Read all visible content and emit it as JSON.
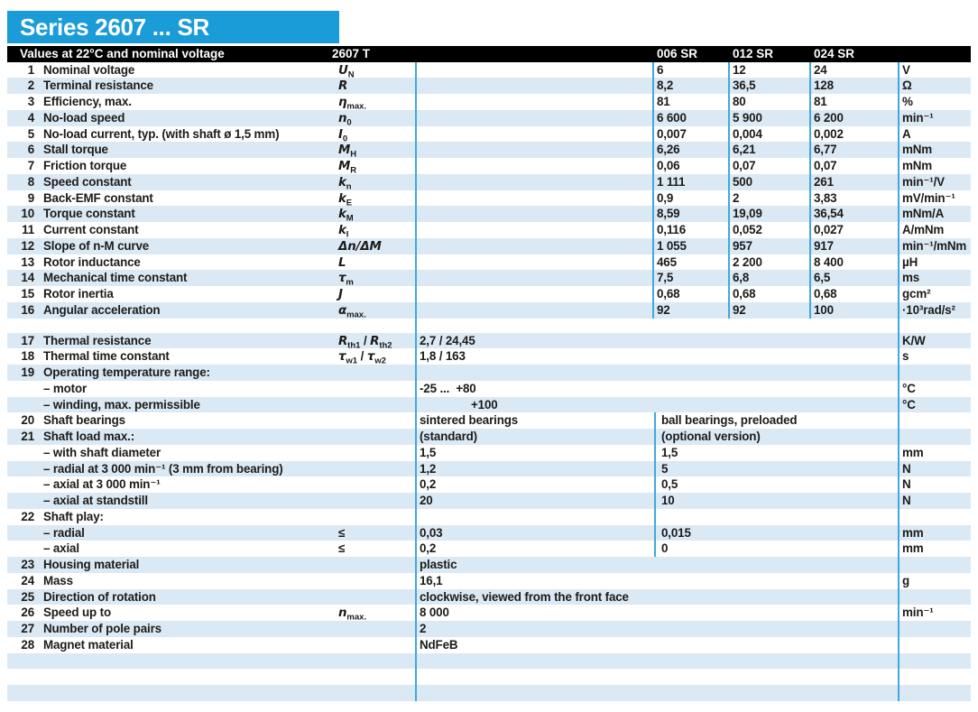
{
  "title": "Series 2607 ... SR",
  "header": {
    "left": "Values at 22°C and nominal voltage",
    "series": "2607 T",
    "columns": [
      "006 SR",
      "012 SR",
      "024 SR"
    ]
  },
  "colors": {
    "accent_blue": "#1a9cd8",
    "row_shade": "#dbe9f5",
    "divider_blue": "#41a8dc",
    "header_bar": "#000000",
    "text": "#1b1b19"
  },
  "rows": [
    {
      "t": "three",
      "n": "1",
      "label": "Nominal voltage",
      "sym": "<i>U</i><sub>N</sub>",
      "v": [
        "6",
        "12",
        "24"
      ],
      "unit": "V",
      "shaded": false
    },
    {
      "t": "three",
      "n": "2",
      "label": "Terminal resistance",
      "sym": "<i>R</i>",
      "v": [
        "8,2",
        "36,5",
        "128"
      ],
      "unit": "Ω",
      "shaded": true
    },
    {
      "t": "three",
      "n": "3",
      "label": "Efficiency, max.",
      "sym": "<i>η</i><sub>max.</sub>",
      "v": [
        "81",
        "80",
        "81"
      ],
      "unit": "%",
      "shaded": false
    },
    {
      "t": "three",
      "n": "4",
      "label": "No-load speed",
      "sym": "<i>n</i><sub>0</sub>",
      "v": [
        "6 600",
        "5 900",
        "6 200"
      ],
      "unit": "min⁻¹",
      "shaded": true
    },
    {
      "t": "three",
      "n": "5",
      "label": "No-load current, typ. (with shaft ø 1,5 mm)",
      "sym": "<i>I</i><sub>0</sub>",
      "v": [
        "0,007",
        "0,004",
        "0,002"
      ],
      "unit": "A",
      "shaded": false
    },
    {
      "t": "three",
      "n": "6",
      "label": "Stall torque",
      "sym": "<i>M</i><sub>H</sub>",
      "v": [
        "6,26",
        "6,21",
        "6,77"
      ],
      "unit": "mNm",
      "shaded": true
    },
    {
      "t": "three",
      "n": "7",
      "label": "Friction torque",
      "sym": "<i>M</i><sub>R</sub>",
      "v": [
        "0,06",
        "0,07",
        "0,07"
      ],
      "unit": "mNm",
      "shaded": false
    },
    {
      "t": "three",
      "n": "8",
      "label": "Speed constant",
      "sym": "<i>k</i><sub>n</sub>",
      "v": [
        "1 111",
        "500",
        "261"
      ],
      "unit": "min⁻¹/V",
      "shaded": true
    },
    {
      "t": "three",
      "n": "9",
      "label": "Back-EMF constant",
      "sym": "<i>k</i><sub>E</sub>",
      "v": [
        "0,9",
        "2",
        "3,83"
      ],
      "unit": "mV/min⁻¹",
      "shaded": false
    },
    {
      "t": "three",
      "n": "10",
      "label": "Torque constant",
      "sym": "<i>k</i><sub>M</sub>",
      "v": [
        "8,59",
        "19,09",
        "36,54"
      ],
      "unit": "mNm/A",
      "shaded": true
    },
    {
      "t": "three",
      "n": "11",
      "label": "Current constant",
      "sym": "<i>k</i><sub>I</sub>",
      "v": [
        "0,116",
        "0,052",
        "0,027"
      ],
      "unit": "A/mNm",
      "shaded": false
    },
    {
      "t": "three",
      "n": "12",
      "label": "Slope of n-M curve",
      "sym": "<i>Δn/ΔM</i>",
      "v": [
        "1 055",
        "957",
        "917"
      ],
      "unit": "min⁻¹/mNm",
      "shaded": true
    },
    {
      "t": "three",
      "n": "13",
      "label": "Rotor inductance",
      "sym": "<i>L</i>",
      "v": [
        "465",
        "2 200",
        "8 400"
      ],
      "unit": "µH",
      "shaded": false
    },
    {
      "t": "three",
      "n": "14",
      "label": "Mechanical time constant",
      "sym": "<i>τ</i><sub>m</sub>",
      "v": [
        "7,5",
        "6,8",
        "6,5"
      ],
      "unit": "ms",
      "shaded": true
    },
    {
      "t": "three",
      "n": "15",
      "label": "Rotor inertia",
      "sym": "<i>J</i>",
      "v": [
        "0,68",
        "0,68",
        "0,68"
      ],
      "unit": "gcm²",
      "shaded": false
    },
    {
      "t": "three",
      "n": "16",
      "label": "Angular acceleration",
      "sym": "<i>α</i><sub>max.</sub>",
      "v": [
        "92",
        "92",
        "100"
      ],
      "unit": "·10³rad/s²",
      "shaded": true
    },
    {
      "t": "gap"
    },
    {
      "t": "wide",
      "n": "17",
      "label": "Thermal resistance",
      "sym": "<i>R</i><sub>th1</sub> / <i>R</i><sub>th2</sub>",
      "v": "2,7 / 24,45",
      "unit": "K/W",
      "shaded": true
    },
    {
      "t": "wide",
      "n": "18",
      "label": "Thermal time constant",
      "sym": "<i>τ</i><sub>w1</sub> / <i>τ</i><sub>w2</sub>",
      "v": "1,8 / 163",
      "unit": "s",
      "shaded": false
    },
    {
      "t": "label",
      "n": "19",
      "label": "Operating temperature range:",
      "shaded": true
    },
    {
      "t": "wide",
      "label": "– motor",
      "v": "-25 ...  +80",
      "unit": "°C",
      "shaded": false
    },
    {
      "t": "wide",
      "label": "– winding, max. permissible",
      "v": "+100",
      "unit": "°C",
      "shaded": true,
      "indent": 57
    },
    {
      "t": "two",
      "n": "20",
      "label": "Shaft bearings",
      "v": [
        "sintered bearings",
        "ball bearings, preloaded"
      ],
      "unit": "",
      "shaded": false
    },
    {
      "t": "two",
      "n": "21",
      "label": "Shaft load max.:",
      "v": [
        "(standard)",
        "(optional version)"
      ],
      "unit": "",
      "shaded": true
    },
    {
      "t": "two",
      "label": "– with shaft diameter",
      "v": [
        "1,5",
        "1,5"
      ],
      "unit": "mm",
      "shaded": false
    },
    {
      "t": "two",
      "label": "– radial at 3 000 min⁻¹ (3 mm from bearing)",
      "v": [
        "1,2",
        "5"
      ],
      "unit": "N",
      "shaded": true
    },
    {
      "t": "two",
      "label": "– axial at 3 000 min⁻¹",
      "v": [
        "0,2",
        "0,5"
      ],
      "unit": "N",
      "shaded": false
    },
    {
      "t": "two",
      "label": "– axial at standstill",
      "v": [
        "20",
        "10"
      ],
      "unit": "N",
      "shaded": true
    },
    {
      "t": "label",
      "n": "22",
      "label": "Shaft play:",
      "shaded": false
    },
    {
      "t": "two",
      "label": "– radial",
      "sym": "≤",
      "v": [
        "0,03",
        "0,015"
      ],
      "unit": "mm",
      "shaded": true
    },
    {
      "t": "two",
      "label": "– axial",
      "sym": "≤",
      "v": [
        "0,2",
        "0"
      ],
      "unit": "mm",
      "shaded": false
    },
    {
      "t": "wide",
      "n": "23",
      "label": "Housing material",
      "v": "plastic",
      "unit": "",
      "shaded": true
    },
    {
      "t": "wide",
      "n": "24",
      "label": "Mass",
      "v": "16,1",
      "unit": "g",
      "shaded": false
    },
    {
      "t": "wide",
      "n": "25",
      "label": "Direction of rotation",
      "v": "clockwise, viewed from the front face",
      "unit": "",
      "shaded": true
    },
    {
      "t": "wide",
      "n": "26",
      "label": "Speed up to",
      "sym": "<i>n</i><sub>max.</sub>",
      "v": "8 000",
      "unit": "min⁻¹",
      "shaded": false
    },
    {
      "t": "wide",
      "n": "27",
      "label": "Number of pole pairs",
      "v": "2",
      "unit": "",
      "shaded": true
    },
    {
      "t": "wide",
      "n": "28",
      "label": "Magnet material",
      "v": "NdFeB",
      "unit": "",
      "shaded": false
    },
    {
      "t": "empty",
      "shaded": true
    },
    {
      "t": "empty",
      "shaded": false
    },
    {
      "t": "empty",
      "shaded": true
    }
  ]
}
